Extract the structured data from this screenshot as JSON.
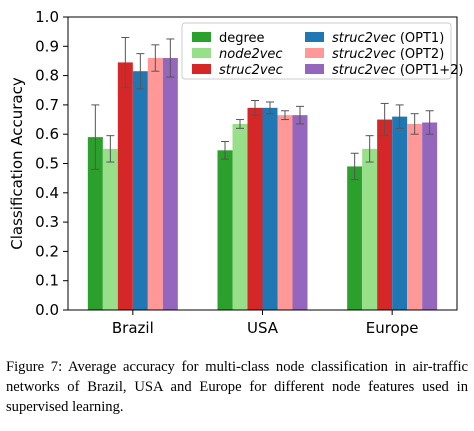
{
  "chart_data": {
    "type": "bar",
    "ylabel": "Classification Accuracy",
    "ylim": [
      0.0,
      1.0
    ],
    "yticks": [
      "0.0",
      "0.1",
      "0.2",
      "0.3",
      "0.4",
      "0.5",
      "0.6",
      "0.7",
      "0.8",
      "0.9",
      "1.0"
    ],
    "categories": [
      "Brazil",
      "USA",
      "Europe"
    ],
    "legend_position": "top-right",
    "series": [
      {
        "name": "degree",
        "italic": false,
        "color": "#2ca02c",
        "values": [
          0.59,
          0.545,
          0.49
        ],
        "errors": [
          0.11,
          0.03,
          0.045
        ]
      },
      {
        "name": "node2vec",
        "italic": true,
        "color": "#98df8a",
        "values": [
          0.55,
          0.635,
          0.55
        ],
        "errors": [
          0.045,
          0.015,
          0.045
        ]
      },
      {
        "name": "struc2vec",
        "italic": true,
        "color": "#d62728",
        "values": [
          0.845,
          0.69,
          0.65
        ],
        "errors": [
          0.085,
          0.025,
          0.055
        ]
      },
      {
        "name": "struc2vec",
        "suffix": " (OPT1)",
        "italic": true,
        "color": "#1f77b4",
        "values": [
          0.815,
          0.69,
          0.66
        ],
        "errors": [
          0.06,
          0.02,
          0.04
        ]
      },
      {
        "name": "struc2vec",
        "suffix": " (OPT2)",
        "italic": true,
        "color": "#ff9896",
        "values": [
          0.86,
          0.665,
          0.635
        ],
        "errors": [
          0.045,
          0.015,
          0.035
        ]
      },
      {
        "name": "struc2vec",
        "suffix": " (OPT1+2)",
        "italic": true,
        "color": "#9467bd",
        "values": [
          0.86,
          0.665,
          0.64
        ],
        "errors": [
          0.065,
          0.03,
          0.04
        ]
      }
    ]
  },
  "caption": {
    "label": "Figure 7:",
    "text": "Average accuracy for multi-class node classification in air-traffic networks of Brazil, USA and Europe for different node features used in supervised learning."
  }
}
